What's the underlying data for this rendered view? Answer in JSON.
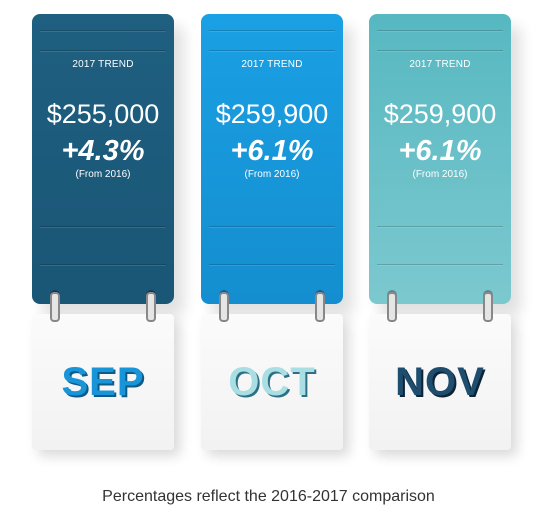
{
  "cards": [
    {
      "trend_label": "2017 TREND",
      "price": "$255,000",
      "change": "+4.3%",
      "note": "(From 2016)",
      "month": "SEP"
    },
    {
      "trend_label": "2017 TREND",
      "price": "$259,900",
      "change": "+6.1%",
      "note": "(From 2016)",
      "month": "OCT"
    },
    {
      "trend_label": "2017 TREND",
      "price": "$259,900",
      "change": "+6.1%",
      "note": "(From 2016)",
      "month": "NOV"
    }
  ],
  "caption": "Percentages reflect the 2016-2017 comparison",
  "colors": {
    "sep_panel": "#1f5f80",
    "oct_panel": "#1aa0e4",
    "nov_panel": "#57b8c1",
    "page": "#f5f5f5"
  }
}
